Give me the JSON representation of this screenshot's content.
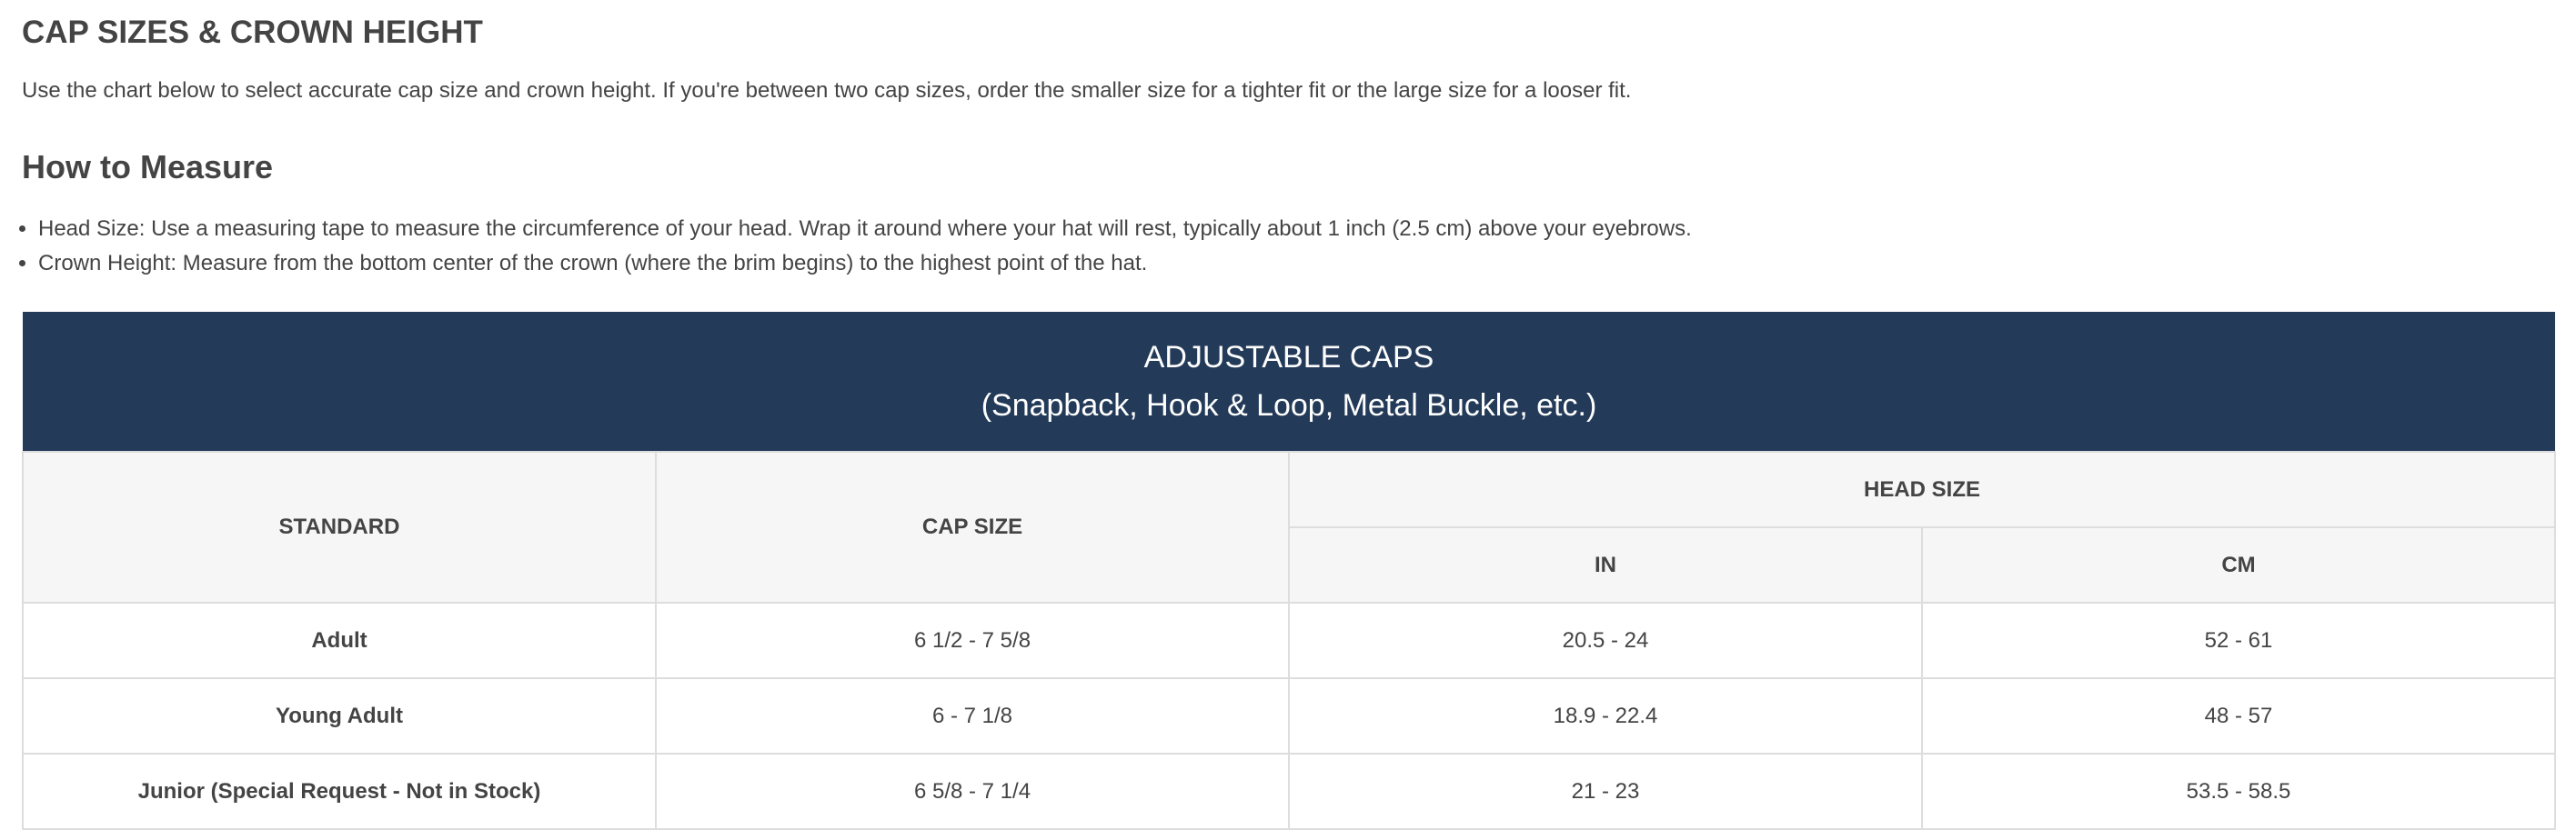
{
  "title": "CAP SIZES & CROWN HEIGHT",
  "intro": "Use the chart below to select accurate cap size and crown height. If you're between two cap sizes, order the smaller size for a tighter fit or the large size for a looser fit.",
  "how_to": {
    "heading": "How to Measure",
    "items": [
      "Head Size: Use a measuring tape to measure the circumference of your head. Wrap it around where your hat will rest, typically about 1 inch (2.5 cm) above your eyebrows.",
      "Crown Height: Measure from the bottom center of the crown (where the brim begins) to the highest point of the hat."
    ]
  },
  "table": {
    "band_title": "ADJUSTABLE CAPS",
    "band_subtitle": "(Snapback, Hook & Loop, Metal Buckle, etc.)",
    "band_color": "#233a59",
    "headers": {
      "standard": "STANDARD",
      "cap_size": "CAP SIZE",
      "head_size": "HEAD SIZE",
      "in": "IN",
      "cm": "CM"
    },
    "rows": [
      {
        "standard": "Adult",
        "cap_size": "6 1/2 - 7 5/8",
        "in": "20.5 - 24",
        "cm": "52 - 61"
      },
      {
        "standard": "Young Adult",
        "cap_size": "6 - 7 1/8",
        "in": "18.9 - 22.4",
        "cm": "48 - 57"
      },
      {
        "standard": "Junior (Special Request - Not in Stock)",
        "cap_size": "6 5/8 - 7 1/4",
        "in": "21 - 23",
        "cm": "53.5 - 58.5"
      }
    ]
  }
}
